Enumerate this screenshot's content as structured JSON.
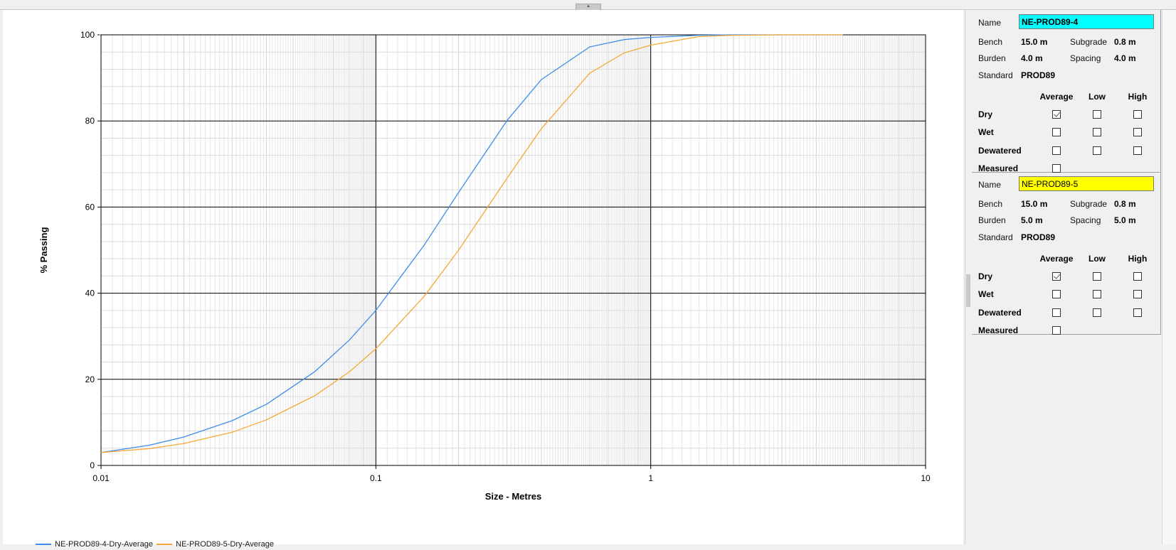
{
  "chart_data": {
    "type": "line",
    "xlabel": "Size - Metres",
    "ylabel": "% Passing",
    "x_scale": "log",
    "xlim": [
      0.01,
      10
    ],
    "ylim": [
      0,
      100
    ],
    "x_ticks": [
      "0.01",
      "0.1",
      "1",
      "10"
    ],
    "y_ticks": [
      "0",
      "20",
      "40",
      "60",
      "80",
      "100"
    ],
    "grid": true,
    "legend_placement": "bottom-left",
    "series": [
      {
        "name": "NE-PROD89-4-Dry-Average",
        "color": "#3c8dea",
        "x": [
          0.01,
          0.015,
          0.02,
          0.03,
          0.04,
          0.06,
          0.08,
          0.1,
          0.15,
          0.2,
          0.3,
          0.4,
          0.6,
          0.8,
          1,
          1.5,
          2,
          3,
          5
        ],
        "y": [
          3.0,
          4.7,
          6.6,
          10.4,
          14.2,
          21.8,
          29.1,
          36.0,
          51.2,
          63.4,
          80.1,
          89.6,
          97.2,
          98.9,
          99.4,
          99.9,
          100,
          100,
          100
        ]
      },
      {
        "name": "NE-PROD89-5-Dry-Average",
        "color": "#f5a833",
        "x": [
          0.01,
          0.015,
          0.02,
          0.03,
          0.04,
          0.06,
          0.08,
          0.1,
          0.15,
          0.2,
          0.3,
          0.4,
          0.6,
          0.8,
          1,
          1.5,
          2,
          3,
          5
        ],
        "y": [
          3.0,
          3.9,
          5.1,
          7.7,
          10.6,
          16.2,
          21.7,
          27.1,
          39.3,
          50.0,
          66.7,
          78.2,
          91.1,
          95.8,
          97.6,
          99.6,
          99.9,
          100,
          100
        ]
      }
    ]
  },
  "panel": {
    "groups": [
      {
        "name_label": "Name",
        "name_value": "NE-PROD89-4",
        "name_color": "#00ffff",
        "bench_label": "Bench",
        "bench_value": "15.0 m",
        "subgrade_label": "Subgrade",
        "subgrade_value": "0.8 m",
        "burden_label": "Burden",
        "burden_value": "4.0 m",
        "spacing_label": "Spacing",
        "spacing_value": "4.0 m",
        "standard_label": "Standard",
        "standard_value": "PROD89",
        "columns": [
          "Average",
          "Low",
          "High"
        ],
        "rows": [
          {
            "label": "Dry",
            "checks": [
              true,
              false,
              false
            ]
          },
          {
            "label": "Wet",
            "checks": [
              false,
              false,
              false
            ]
          },
          {
            "label": "Dewatered",
            "checks": [
              false,
              false,
              false
            ]
          },
          {
            "label": "Measured",
            "checks": [
              false
            ]
          }
        ]
      },
      {
        "name_label": "Name",
        "name_value": "NE-PROD89-5",
        "name_color": "#ffff00",
        "bench_label": "Bench",
        "bench_value": "15.0 m",
        "subgrade_label": "Subgrade",
        "subgrade_value": "0.8 m",
        "burden_label": "Burden",
        "burden_value": "5.0 m",
        "spacing_label": "Spacing",
        "spacing_value": "5.0 m",
        "standard_label": "Standard",
        "standard_value": "PROD89",
        "columns": [
          "Average",
          "Low",
          "High"
        ],
        "rows": [
          {
            "label": "Dry",
            "checks": [
              true,
              false,
              false
            ]
          },
          {
            "label": "Wet",
            "checks": [
              false,
              false,
              false
            ]
          },
          {
            "label": "Dewatered",
            "checks": [
              false,
              false,
              false
            ]
          },
          {
            "label": "Measured",
            "checks": [
              false
            ]
          }
        ]
      }
    ]
  }
}
